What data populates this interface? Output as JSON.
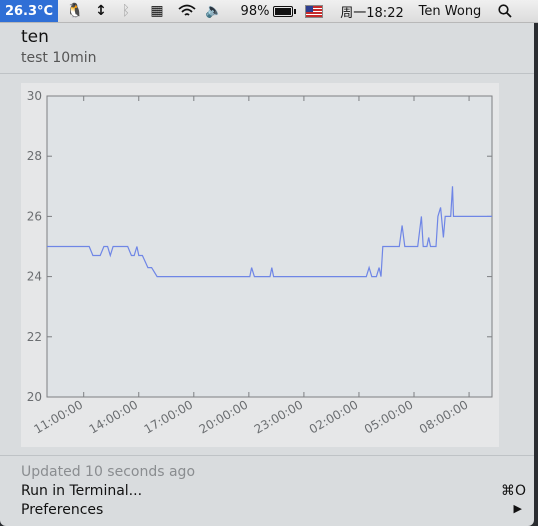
{
  "menubar": {
    "temperature": "26.3°C",
    "battery_percent": "98%",
    "battery_level": 0.98,
    "datetime": "周一18:22",
    "user": "Ten Wong",
    "icons": [
      "qq-penguin-icon",
      "updown-arrows-icon",
      "bluetooth-icon",
      "display-icon",
      "wifi-icon",
      "volume-icon",
      "battery-icon",
      "us-flag-icon",
      "search-icon"
    ],
    "accent_color": "#2f6fd6"
  },
  "panel": {
    "title": "ten",
    "subtitle": "test 10min"
  },
  "footer": {
    "updated": "Updated 10 seconds ago",
    "run_in_terminal": "Run in Terminal...",
    "run_shortcut": "⌘O",
    "preferences": "Preferences",
    "preferences_arrow": "▶"
  },
  "chart_data": {
    "type": "line",
    "title": "",
    "xlabel": "",
    "ylabel": "",
    "ylim": [
      20,
      30
    ],
    "yticks": [
      20,
      22,
      24,
      26,
      28,
      30
    ],
    "xticks": [
      "11:00:00",
      "14:00:00",
      "17:00:00",
      "20:00:00",
      "23:00:00",
      "02:00:00",
      "05:00:00",
      "08:00:00"
    ],
    "xtick_hours": [
      11,
      14,
      17,
      20,
      23,
      26,
      29,
      32
    ],
    "xlim_hours": [
      9.0,
      33.25
    ],
    "grid": false,
    "line_color": "#6f86e6",
    "series": [
      {
        "x_hours": [
          9.0,
          11.3,
          11.5,
          11.9,
          12.1,
          12.3,
          12.45,
          12.6,
          12.8,
          13.4,
          13.6,
          13.75,
          13.9,
          14.0,
          14.2,
          14.5,
          14.7,
          15.0,
          20.05,
          20.15,
          20.3,
          20.4,
          21.15,
          21.25,
          21.35,
          26.4,
          26.55,
          26.7,
          26.8,
          26.95,
          27.1,
          27.2,
          27.3,
          28.2,
          28.35,
          28.5,
          29.2,
          29.4,
          29.5,
          29.7,
          29.8,
          29.9,
          30.2,
          30.3,
          30.45,
          30.6,
          30.7,
          31.0,
          31.1,
          31.15,
          31.3,
          31.45,
          31.7,
          31.85,
          32.0,
          33.25
        ],
        "y": [
          25.0,
          25.0,
          24.7,
          24.7,
          25.0,
          25.0,
          24.7,
          25.0,
          25.0,
          25.0,
          24.7,
          24.7,
          25.0,
          24.7,
          24.7,
          24.3,
          24.3,
          24.0,
          24.0,
          24.3,
          24.0,
          24.0,
          24.0,
          24.3,
          24.0,
          24.0,
          24.3,
          24.0,
          24.0,
          24.0,
          24.3,
          24.0,
          25.0,
          25.0,
          25.7,
          25.0,
          25.0,
          26.0,
          25.0,
          25.0,
          25.3,
          25.0,
          25.0,
          26.0,
          26.3,
          25.3,
          26.0,
          26.0,
          27.0,
          26.0,
          26.0,
          26.0,
          26.0,
          26.0,
          26.0,
          26.0
        ]
      }
    ]
  }
}
